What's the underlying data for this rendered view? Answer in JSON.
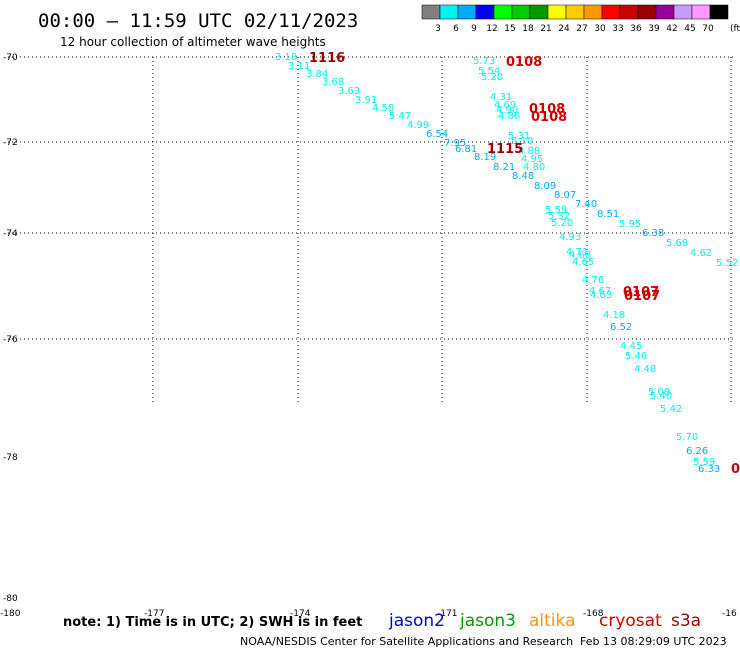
{
  "header": {
    "title": "00:00 – 11:59 UTC 02/11/2023",
    "subtitle": "12 hour collection of altimeter wave heights"
  },
  "legend": {
    "colors": [
      "#808080",
      "#00f2f2",
      "#00aaff",
      "#0000ff",
      "#00ff00",
      "#00cc00",
      "#009900",
      "#ffff00",
      "#ffcc00",
      "#ff9900",
      "#ff0000",
      "#cc0000",
      "#990000",
      "#990099",
      "#cc99ff",
      "#ff99ff",
      "#000000"
    ],
    "labels": [
      "3",
      "6",
      "9",
      "12",
      "15",
      "18",
      "21",
      "24",
      "27",
      "30",
      "33",
      "36",
      "39",
      "42",
      "45",
      "70",
      "(ft)"
    ]
  },
  "axes": {
    "lat_labels": [
      "-70",
      "-72",
      "-74",
      "-76",
      "-78",
      "-80"
    ],
    "lon_labels": [
      "-180",
      "-177",
      "-174",
      "-171",
      "-168",
      "-16"
    ]
  },
  "time_labels": [
    {
      "text": "1116",
      "color": "#990000"
    },
    {
      "text": "0108",
      "color": "#cc0000"
    },
    {
      "text": "0108",
      "color": "#cc0000"
    },
    {
      "text": "0108",
      "color": "#cc0000"
    },
    {
      "text": "1115",
      "color": "#990000"
    },
    {
      "text": "0107",
      "color": "#cc0000"
    },
    {
      "text": "0107",
      "color": "#cc0000"
    },
    {
      "text": "0",
      "color": "#cc0000"
    }
  ],
  "swh_points": [
    {
      "v": "3.18",
      "c": "#00f2f2"
    },
    {
      "v": "3.11",
      "c": "#00f2f2"
    },
    {
      "v": "3.84",
      "c": "#00f2f2"
    },
    {
      "v": "3.68",
      "c": "#00f2f2"
    },
    {
      "v": "3.63",
      "c": "#00f2f2"
    },
    {
      "v": "3.91",
      "c": "#00f2f2"
    },
    {
      "v": "4.58",
      "c": "#00f2f2"
    },
    {
      "v": "5.47",
      "c": "#00f2f2"
    },
    {
      "v": "4.99",
      "c": "#00f2f2"
    },
    {
      "v": "6.54",
      "c": "#00aaff"
    },
    {
      "v": "7.95",
      "c": "#00aaff"
    },
    {
      "v": "6.81",
      "c": "#00aaff"
    },
    {
      "v": "8.19",
      "c": "#00aaff"
    },
    {
      "v": "8.21",
      "c": "#00aaff"
    },
    {
      "v": "8.48",
      "c": "#00aaff"
    },
    {
      "v": "8.09",
      "c": "#00aaff"
    },
    {
      "v": "8.07",
      "c": "#00aaff"
    },
    {
      "v": "7.40",
      "c": "#00aaff"
    },
    {
      "v": "8.51",
      "c": "#00aaff"
    },
    {
      "v": "5.95",
      "c": "#00f2f2"
    },
    {
      "v": "6.38",
      "c": "#00aaff"
    },
    {
      "v": "5.68",
      "c": "#00f2f2"
    },
    {
      "v": "4.62",
      "c": "#00f2f2"
    },
    {
      "v": "5.52",
      "c": "#00f2f2"
    },
    {
      "v": "5.73",
      "c": "#00f2f2"
    },
    {
      "v": "5.54",
      "c": "#00f2f2"
    },
    {
      "v": "5.20",
      "c": "#00f2f2"
    },
    {
      "v": "4.31",
      "c": "#00f2f2"
    },
    {
      "v": "4.69",
      "c": "#00f2f2"
    },
    {
      "v": "4.90",
      "c": "#00f2f2"
    },
    {
      "v": "4.86",
      "c": "#00f2f2"
    },
    {
      "v": "5.31",
      "c": "#00f2f2"
    },
    {
      "v": "5.10",
      "c": "#00f2f2"
    },
    {
      "v": "4.88",
      "c": "#00f2f2"
    },
    {
      "v": "4.95",
      "c": "#00f2f2"
    },
    {
      "v": "4.80",
      "c": "#00f2f2"
    },
    {
      "v": "5.59",
      "c": "#00f2f2"
    },
    {
      "v": "5.32",
      "c": "#00f2f2"
    },
    {
      "v": "5.20",
      "c": "#00f2f2"
    },
    {
      "v": "4.93",
      "c": "#00f2f2"
    },
    {
      "v": "4.71",
      "c": "#00f2f2"
    },
    {
      "v": "4.68",
      "c": "#00f2f2"
    },
    {
      "v": "4.65",
      "c": "#00f2f2"
    },
    {
      "v": "4.76",
      "c": "#00f2f2"
    },
    {
      "v": "4.67",
      "c": "#00f2f2"
    },
    {
      "v": "4.63",
      "c": "#00f2f2"
    },
    {
      "v": "4.18",
      "c": "#00f2f2"
    },
    {
      "v": "6.52",
      "c": "#00aaff"
    },
    {
      "v": "4.45",
      "c": "#00f2f2"
    },
    {
      "v": "5.46",
      "c": "#00f2f2"
    },
    {
      "v": "4.48",
      "c": "#00f2f2"
    },
    {
      "v": "5.08",
      "c": "#00f2f2"
    },
    {
      "v": "5.40",
      "c": "#00f2f2"
    },
    {
      "v": "5.42",
      "c": "#00f2f2"
    },
    {
      "v": "5.70",
      "c": "#00f2f2"
    },
    {
      "v": "6.26",
      "c": "#00aaff"
    },
    {
      "v": "5.59",
      "c": "#00f2f2"
    },
    {
      "v": "6.33",
      "c": "#00aaff"
    }
  ],
  "footer": {
    "note": "note: 1) Time is in UTC; 2) SWH is in feet",
    "satellites": [
      {
        "name": "jason2",
        "color": "#0000cc"
      },
      {
        "name": "jason3",
        "color": "#009900"
      },
      {
        "name": "altika",
        "color": "#ff9900"
      },
      {
        "name": "cryosat",
        "color": "#cc0000"
      },
      {
        "name": "s3a",
        "color": "#990000"
      }
    ],
    "credit": "NOAA/NESDIS Center for Satellite Applications and Research",
    "timestamp": "Feb 13 08:29:09 UTC 2023"
  }
}
